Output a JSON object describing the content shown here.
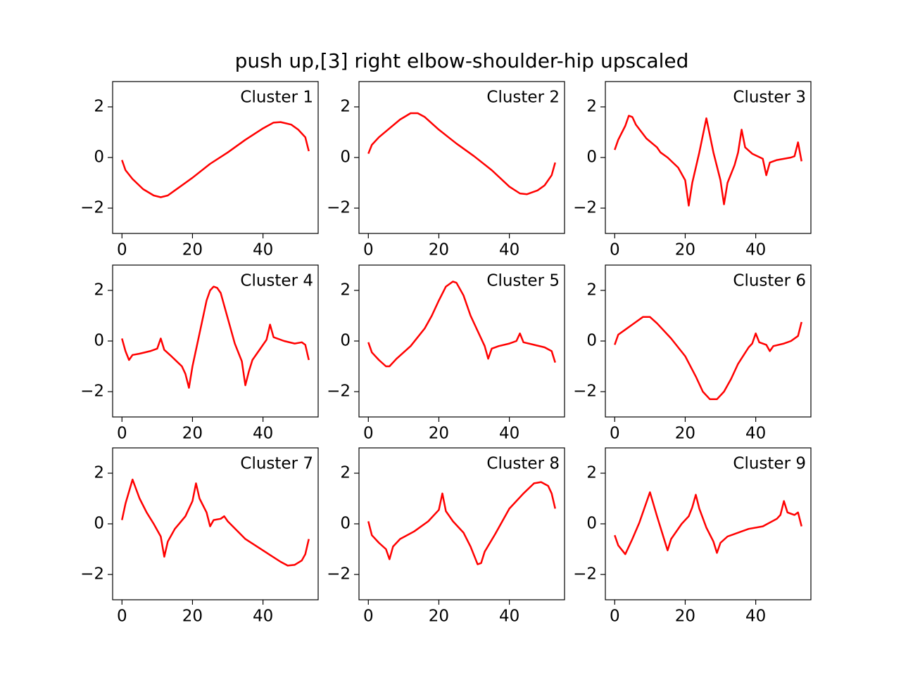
{
  "title": "push up,[3] right elbow-shoulder-hip upscaled",
  "chart_data": [
    {
      "type": "line",
      "title": "Cluster 1",
      "color": "red",
      "xlim": [
        -2.65,
        55.65
      ],
      "ylim": [
        -3,
        3
      ],
      "xticks": [
        0,
        20,
        40
      ],
      "yticks": [
        {
          "value": -2,
          "label": "−2"
        },
        0,
        2
      ],
      "x": [
        0,
        1,
        3,
        6,
        9,
        11,
        13,
        15,
        20,
        25,
        30,
        35,
        40,
        43,
        45,
        48,
        50,
        52,
        53
      ],
      "values": [
        -0.1,
        -0.5,
        -0.85,
        -1.25,
        -1.5,
        -1.57,
        -1.5,
        -1.3,
        -0.8,
        -0.25,
        0.2,
        0.7,
        1.15,
        1.38,
        1.4,
        1.3,
        1.1,
        0.8,
        0.25
      ]
    },
    {
      "type": "line",
      "title": "Cluster 2",
      "color": "red",
      "xlim": [
        -2.65,
        55.65
      ],
      "ylim": [
        -3,
        3
      ],
      "xticks": [
        0,
        20,
        40
      ],
      "yticks": [
        {
          "value": -2,
          "label": "−2"
        },
        0,
        2
      ],
      "x": [
        0,
        1,
        3,
        6,
        9,
        12,
        14,
        16,
        20,
        25,
        30,
        35,
        40,
        43,
        45,
        48,
        50,
        52,
        53
      ],
      "values": [
        0.15,
        0.5,
        0.8,
        1.15,
        1.5,
        1.75,
        1.75,
        1.6,
        1.1,
        0.55,
        0.05,
        -0.5,
        -1.15,
        -1.42,
        -1.45,
        -1.3,
        -1.1,
        -0.7,
        -0.2
      ]
    },
    {
      "type": "line",
      "title": "Cluster 3",
      "color": "red",
      "xlim": [
        -2.65,
        55.65
      ],
      "ylim": [
        -3,
        3
      ],
      "xticks": [
        0,
        20,
        40
      ],
      "yticks": [
        {
          "value": -2,
          "label": "−2"
        },
        0,
        2
      ],
      "x": [
        0,
        1,
        3,
        4,
        5,
        6,
        9,
        12,
        13,
        15,
        18,
        20,
        21,
        22,
        24,
        26,
        28,
        30,
        31,
        32,
        34,
        35,
        36,
        37,
        39,
        42,
        43,
        44,
        46,
        50,
        51,
        52,
        53
      ],
      "values": [
        0.3,
        0.7,
        1.25,
        1.65,
        1.6,
        1.3,
        0.75,
        0.4,
        0.2,
        0,
        -0.4,
        -0.9,
        -1.9,
        -1,
        0.2,
        1.55,
        0.2,
        -0.9,
        -1.85,
        -1,
        -0.3,
        0.2,
        1.1,
        0.4,
        0.15,
        -0.05,
        -0.7,
        -0.2,
        -0.1,
        0,
        0.05,
        0.6,
        -0.15
      ]
    },
    {
      "type": "line",
      "title": "Cluster 4",
      "color": "red",
      "xlim": [
        -2.65,
        55.65
      ],
      "ylim": [
        -3,
        3
      ],
      "xticks": [
        0,
        20,
        40
      ],
      "yticks": [
        {
          "value": -2,
          "label": "−2"
        },
        0,
        2
      ],
      "x": [
        0,
        1,
        2,
        3,
        5,
        8,
        10,
        11,
        12,
        14,
        17,
        18,
        19,
        20,
        22,
        24,
        25,
        26,
        27,
        28,
        30,
        32,
        34,
        35,
        36,
        37,
        39,
        41,
        42,
        43,
        46,
        49,
        51,
        52,
        53
      ],
      "values": [
        0.1,
        -0.4,
        -0.75,
        -0.55,
        -0.5,
        -0.4,
        -0.3,
        0.1,
        -0.35,
        -0.6,
        -1,
        -1.3,
        -1.85,
        -1,
        0.3,
        1.6,
        2,
        2.15,
        2.1,
        1.9,
        0.9,
        -0.1,
        -0.8,
        -1.75,
        -1.2,
        -0.75,
        -0.35,
        0.05,
        0.65,
        0.15,
        0,
        -0.1,
        -0.05,
        -0.15,
        -0.75
      ]
    },
    {
      "type": "line",
      "title": "Cluster 5",
      "color": "red",
      "xlim": [
        -2.65,
        55.65
      ],
      "ylim": [
        -3,
        3
      ],
      "xticks": [
        0,
        20,
        40
      ],
      "yticks": [
        {
          "value": -2,
          "label": "−2"
        },
        0,
        2
      ],
      "x": [
        0,
        1,
        3,
        5,
        6,
        8,
        12,
        16,
        18,
        20,
        22,
        24,
        25,
        27,
        29,
        31,
        33,
        34,
        35,
        37,
        40,
        42,
        43,
        44,
        47,
        50,
        52,
        53
      ],
      "values": [
        -0.05,
        -0.45,
        -0.75,
        -1,
        -1,
        -0.7,
        -0.2,
        0.5,
        1,
        1.6,
        2.15,
        2.35,
        2.3,
        1.8,
        1,
        0.4,
        -0.2,
        -0.7,
        -0.3,
        -0.2,
        -0.1,
        0,
        0.3,
        -0.05,
        -0.15,
        -0.25,
        -0.4,
        -0.85
      ]
    },
    {
      "type": "line",
      "title": "Cluster 6",
      "color": "red",
      "xlim": [
        -2.65,
        55.65
      ],
      "ylim": [
        -3,
        3
      ],
      "xticks": [
        0,
        20,
        40
      ],
      "yticks": [
        {
          "value": -2,
          "label": "−2"
        },
        0,
        2
      ],
      "x": [
        0,
        1,
        3,
        6,
        8,
        10,
        12,
        16,
        20,
        23,
        25,
        27,
        29,
        31,
        33,
        35,
        38,
        39,
        40,
        41,
        43,
        44,
        45,
        48,
        50,
        52,
        53
      ],
      "values": [
        -0.15,
        0.25,
        0.45,
        0.75,
        0.95,
        0.95,
        0.7,
        0.1,
        -0.6,
        -1.4,
        -2,
        -2.3,
        -2.3,
        -2,
        -1.5,
        -0.9,
        -0.25,
        -0.1,
        0.3,
        -0.05,
        -0.15,
        -0.4,
        -0.2,
        -0.1,
        0,
        0.2,
        0.75
      ]
    },
    {
      "type": "line",
      "title": "Cluster 7",
      "color": "red",
      "xlim": [
        -2.65,
        55.65
      ],
      "ylim": [
        -3,
        3
      ],
      "xticks": [
        0,
        20,
        40
      ],
      "yticks": [
        {
          "value": -2,
          "label": "−2"
        },
        0,
        2
      ],
      "x": [
        0,
        1,
        3,
        5,
        7,
        9,
        11,
        12,
        13,
        15,
        18,
        20,
        21,
        22,
        24,
        25,
        26,
        28,
        29,
        30,
        35,
        40,
        45,
        47,
        49,
        51,
        52,
        53
      ],
      "values": [
        0.15,
        0.8,
        1.75,
        1,
        0.45,
        0,
        -0.5,
        -1.3,
        -0.7,
        -0.2,
        0.3,
        0.9,
        1.6,
        1,
        0.45,
        -0.1,
        0.15,
        0.2,
        0.3,
        0.1,
        -0.6,
        -1.05,
        -1.5,
        -1.65,
        -1.62,
        -1.45,
        -1.2,
        -0.6
      ]
    },
    {
      "type": "line",
      "title": "Cluster 8",
      "color": "red",
      "xlim": [
        -2.65,
        55.65
      ],
      "ylim": [
        -3,
        3
      ],
      "xticks": [
        0,
        20,
        40
      ],
      "yticks": [
        {
          "value": -2,
          "label": "−2"
        },
        0,
        2
      ],
      "x": [
        0,
        1,
        3,
        5,
        6,
        7,
        9,
        13,
        17,
        20,
        21,
        22,
        24,
        27,
        29,
        31,
        32,
        33,
        36,
        38,
        40,
        44,
        47,
        49,
        51,
        52,
        53
      ],
      "values": [
        0.1,
        -0.45,
        -0.75,
        -1,
        -1.4,
        -0.9,
        -0.6,
        -0.3,
        0.1,
        0.55,
        1.2,
        0.5,
        0.1,
        -0.35,
        -0.9,
        -1.6,
        -1.55,
        -1.1,
        -0.4,
        0.1,
        0.6,
        1.2,
        1.6,
        1.65,
        1.5,
        1.2,
        0.6
      ]
    },
    {
      "type": "line",
      "title": "Cluster 9",
      "color": "red",
      "xlim": [
        -2.65,
        55.65
      ],
      "ylim": [
        -3,
        3
      ],
      "xticks": [
        0,
        20,
        40
      ],
      "yticks": [
        {
          "value": -2,
          "label": "−2"
        },
        0,
        2
      ],
      "x": [
        0,
        1,
        3,
        5,
        7,
        9,
        10,
        12,
        14,
        15,
        16,
        19,
        21,
        22,
        23,
        24,
        26,
        28,
        29,
        30,
        32,
        38,
        42,
        46,
        47,
        48,
        49,
        51,
        52,
        53
      ],
      "values": [
        -0.45,
        -0.85,
        -1.2,
        -0.6,
        0.05,
        0.85,
        1.25,
        0.3,
        -0.6,
        -1.05,
        -0.6,
        0,
        0.3,
        0.65,
        1.15,
        0.6,
        -0.15,
        -0.7,
        -1.15,
        -0.75,
        -0.5,
        -0.2,
        -0.1,
        0.2,
        0.35,
        0.9,
        0.45,
        0.35,
        0.45,
        -0.1
      ]
    }
  ]
}
